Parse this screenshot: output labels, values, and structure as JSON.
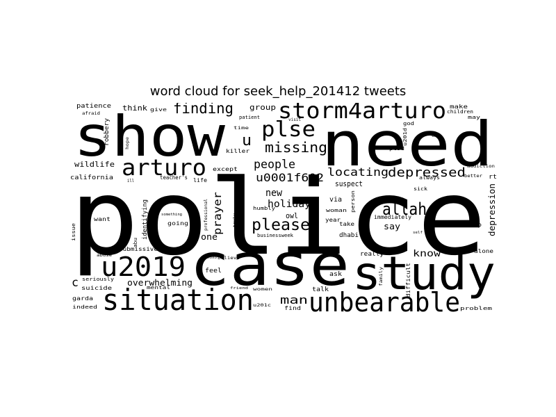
{
  "title": "word cloud for seek_help_201412 tweets",
  "colors": {
    "background": "#ffffff",
    "text": "#000000"
  },
  "words": [
    "police",
    "need",
    "show",
    "case",
    "study",
    "situation",
    "unbearable",
    "u2019",
    "storm4arturo",
    "arturo",
    "plse",
    "finding",
    "missing",
    "please",
    "allah",
    "depressed",
    "locating",
    "u0001f602",
    "people",
    "holiday",
    "new",
    "prayer",
    "u",
    "c",
    "man",
    "know",
    "say",
    "depression",
    "suspect",
    "owl",
    "via",
    "overwhelming",
    "group",
    "wildlife",
    "california",
    "think",
    "patience",
    "robbery",
    "afraid",
    "give",
    "make",
    "children",
    "may",
    "god",
    "rt",
    "alone",
    "stop",
    "today",
    "issue",
    "want",
    "seriously",
    "suicide",
    "garda",
    "indeed",
    "problem",
    "submissive",
    "identifying",
    "going",
    "feel",
    "one",
    "really",
    "take",
    "year",
    "woman",
    "person",
    "family",
    "difficult",
    "immediately",
    "ask",
    "talk",
    "find",
    "mental",
    "women",
    "friend",
    "u201c",
    "killer",
    "except",
    "ptsd",
    "u201d",
    "sick",
    "always",
    "better",
    "addiction",
    "humbly",
    "businessweek",
    "dhabi",
    "time",
    "patient",
    "visit",
    "life",
    "teacher's",
    "ill",
    "hope",
    "something",
    "professional",
    "abuse",
    "xoxo",
    "believe",
    "self",
    "anyone",
    "ok",
    "truly",
    "abu"
  ]
}
